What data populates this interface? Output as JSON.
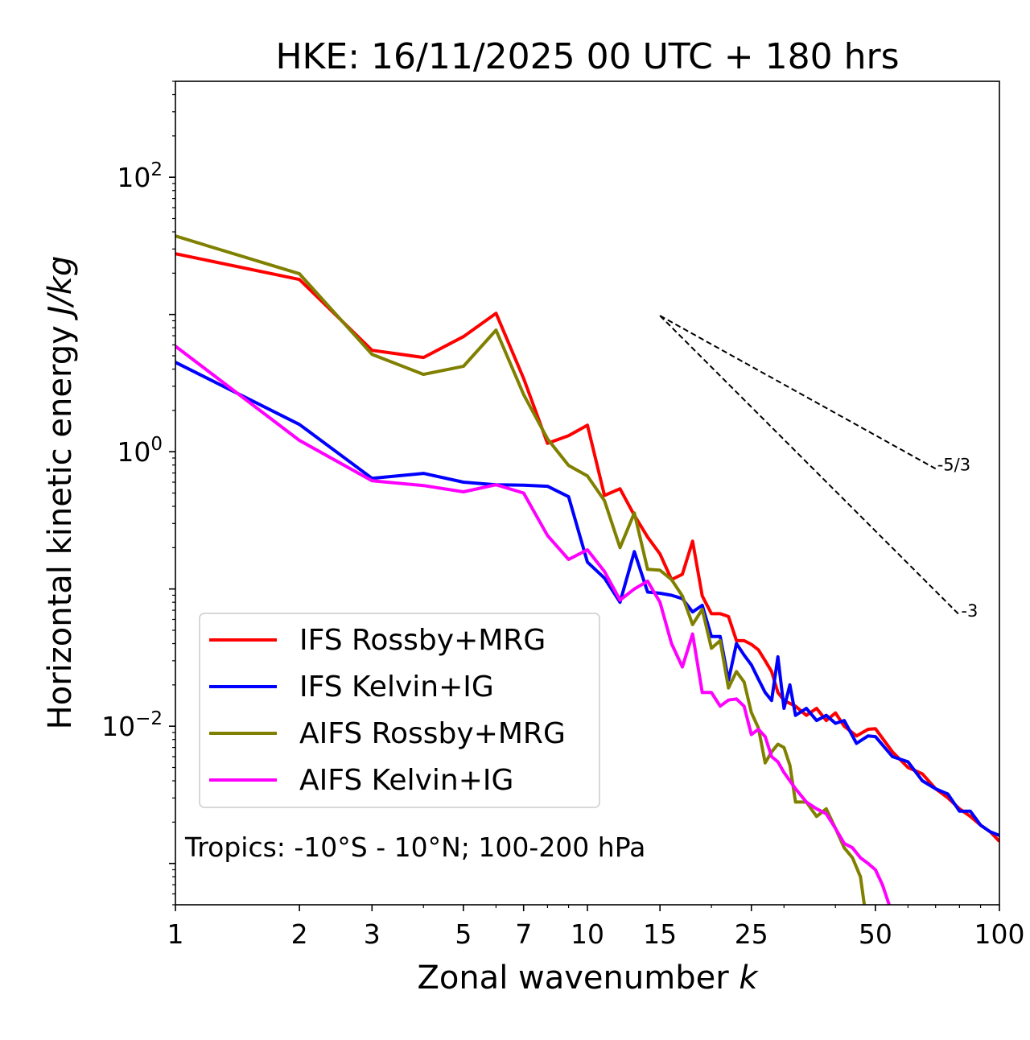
{
  "chart_data": {
    "type": "line",
    "title": "HKE: 16/11/2025 00 UTC + 180 hrs",
    "xlabel": "Zonal wavenumber ",
    "xlabel_italic": "k",
    "ylabel": "Horizontal kinetic energy ",
    "ylabel_italic": "J/kg",
    "xscale": "log",
    "yscale": "log",
    "xlim": [
      1,
      100
    ],
    "ylim": [
      0.0005,
      500
    ],
    "xticks": [
      1,
      2,
      3,
      5,
      7,
      10,
      15,
      25,
      50,
      100
    ],
    "xtick_labels": [
      "1",
      "2",
      "3",
      "5",
      "7",
      "10",
      "15",
      "25",
      "50",
      "100"
    ],
    "yticks": [
      {
        "value": 100,
        "base": "10",
        "exp": "2"
      },
      {
        "value": 1,
        "base": "10",
        "exp": "0"
      },
      {
        "value": 0.01,
        "base": "10",
        "exp": "−2"
      }
    ],
    "grid": false,
    "legend_position": "lower-left",
    "annotation": "Tropics: -10°S - 10°N; 100-200 hPa",
    "reference_lines": [
      {
        "label": "-5/3",
        "slope": -1.6667,
        "k0": 15,
        "y0": 9.8,
        "k1": 70
      },
      {
        "label": "-3",
        "slope": -3,
        "k0": 15,
        "y0": 9.8,
        "k1": 80
      }
    ],
    "series": [
      {
        "name": "IFS Rossby+MRG",
        "color": "#ff0000",
        "k": [
          1,
          2,
          3,
          4,
          5,
          6,
          7,
          8,
          9,
          10,
          11,
          12,
          13,
          14,
          15,
          16,
          17,
          18,
          19,
          20,
          21,
          22,
          23,
          24,
          25,
          26,
          27,
          28,
          29,
          30,
          32,
          34,
          36,
          38,
          40,
          42,
          45,
          48,
          50,
          55,
          60,
          65,
          70,
          75,
          80,
          85,
          90,
          95,
          100
        ],
        "y": [
          27.7,
          18.0,
          5.48,
          4.86,
          6.9,
          10.2,
          3.42,
          1.15,
          1.31,
          1.56,
          0.48,
          0.537,
          0.344,
          0.239,
          0.18,
          0.117,
          0.128,
          0.223,
          0.089,
          0.066,
          0.066,
          0.063,
          0.042,
          0.042,
          0.0395,
          0.036,
          0.03,
          0.025,
          0.0176,
          0.0154,
          0.014,
          0.012,
          0.0135,
          0.011,
          0.0125,
          0.01,
          0.0085,
          0.0095,
          0.0096,
          0.0065,
          0.005,
          0.0045,
          0.0035,
          0.003,
          0.0025,
          0.0022,
          0.0019,
          0.0017,
          0.00145
        ]
      },
      {
        "name": "IFS Kelvin+IG",
        "color": "#0000ff",
        "k": [
          1,
          2,
          3,
          4,
          5,
          6,
          7,
          8,
          9,
          10,
          11,
          12,
          13,
          14,
          15,
          16,
          17,
          18,
          19,
          20,
          21,
          22,
          23,
          24,
          25,
          26,
          27,
          28,
          29,
          30,
          31,
          32,
          34,
          36,
          38,
          40,
          42,
          45,
          48,
          50,
          55,
          60,
          65,
          70,
          75,
          80,
          85,
          90,
          95,
          100
        ],
        "y": [
          4.48,
          1.58,
          0.64,
          0.695,
          0.6,
          0.575,
          0.57,
          0.56,
          0.47,
          0.157,
          0.12,
          0.08,
          0.187,
          0.095,
          0.093,
          0.09,
          0.085,
          0.068,
          0.076,
          0.045,
          0.045,
          0.0216,
          0.04,
          0.033,
          0.028,
          0.022,
          0.0176,
          0.0154,
          0.032,
          0.0135,
          0.02,
          0.012,
          0.0135,
          0.011,
          0.012,
          0.0105,
          0.011,
          0.0075,
          0.0085,
          0.0084,
          0.006,
          0.0055,
          0.004,
          0.0035,
          0.0032,
          0.0024,
          0.0024,
          0.0019,
          0.0017,
          0.0016
        ]
      },
      {
        "name": "AIFS Rossby+MRG",
        "color": "#808000",
        "k": [
          1,
          2,
          3,
          4,
          5,
          6,
          7,
          8,
          9,
          10,
          11,
          12,
          13,
          14,
          15,
          16,
          17,
          18,
          19,
          20,
          21,
          22,
          23,
          24,
          25,
          26,
          27,
          28,
          29,
          30,
          31,
          32,
          34,
          36,
          38,
          40,
          42,
          44,
          46,
          47
        ],
        "y": [
          37.3,
          19.8,
          5.12,
          3.66,
          4.19,
          7.69,
          2.61,
          1.24,
          0.795,
          0.667,
          0.44,
          0.2,
          0.358,
          0.139,
          0.137,
          0.117,
          0.089,
          0.055,
          0.071,
          0.037,
          0.042,
          0.019,
          0.025,
          0.021,
          0.0126,
          0.0097,
          0.0054,
          0.0065,
          0.0074,
          0.007,
          0.0052,
          0.0028,
          0.0028,
          0.0022,
          0.0025,
          0.0018,
          0.0013,
          0.0011,
          0.0008,
          0.0005
        ]
      },
      {
        "name": "AIFS Kelvin+IG",
        "color": "#ff00ff",
        "k": [
          1,
          2,
          3,
          4,
          5,
          6,
          7,
          8,
          9,
          10,
          11,
          12,
          13,
          14,
          15,
          16,
          17,
          18,
          19,
          20,
          21,
          22,
          23,
          24,
          25,
          26,
          27,
          28,
          29,
          30,
          32,
          34,
          36,
          38,
          40,
          42,
          44,
          46,
          48,
          50,
          52,
          54
        ],
        "y": [
          5.87,
          1.21,
          0.615,
          0.567,
          0.51,
          0.575,
          0.5,
          0.245,
          0.164,
          0.193,
          0.134,
          0.083,
          0.1,
          0.114,
          0.08,
          0.04,
          0.027,
          0.047,
          0.0176,
          0.0176,
          0.014,
          0.0155,
          0.0158,
          0.014,
          0.0087,
          0.0095,
          0.0084,
          0.006,
          0.0055,
          0.0046,
          0.0035,
          0.0028,
          0.0025,
          0.0023,
          0.0018,
          0.0014,
          0.0013,
          0.0011,
          0.001,
          0.0009,
          0.0007,
          0.0005
        ]
      }
    ]
  }
}
